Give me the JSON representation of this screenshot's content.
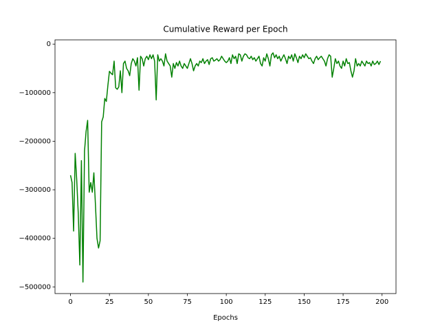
{
  "chart_data": {
    "type": "line",
    "title": "Cumulative Reward per Epoch",
    "x_label": "Epochs",
    "x": [
      0,
      1,
      2,
      3,
      4,
      5,
      6,
      7,
      8,
      9,
      10,
      11,
      12,
      13,
      14,
      15,
      16,
      17,
      18,
      19,
      20,
      21,
      22,
      23,
      24,
      25,
      26,
      27,
      28,
      29,
      30,
      31,
      32,
      33,
      34,
      35,
      36,
      37,
      38,
      39,
      40,
      41,
      42,
      43,
      44,
      45,
      46,
      47,
      48,
      49,
      50,
      51,
      52,
      53,
      54,
      55,
      56,
      57,
      58,
      59,
      60,
      61,
      62,
      63,
      64,
      65,
      66,
      67,
      68,
      69,
      70,
      71,
      72,
      73,
      74,
      75,
      76,
      77,
      78,
      79,
      80,
      81,
      82,
      83,
      84,
      85,
      86,
      87,
      88,
      89,
      90,
      91,
      92,
      93,
      94,
      95,
      96,
      97,
      98,
      99,
      100,
      101,
      102,
      103,
      104,
      105,
      106,
      107,
      108,
      109,
      110,
      111,
      112,
      113,
      114,
      115,
      116,
      117,
      118,
      119,
      120,
      121,
      122,
      123,
      124,
      125,
      126,
      127,
      128,
      129,
      130,
      131,
      132,
      133,
      134,
      135,
      136,
      137,
      138,
      139,
      140,
      141,
      142,
      143,
      144,
      145,
      146,
      147,
      148,
      149,
      150,
      151,
      152,
      153,
      154,
      155,
      156,
      157,
      158,
      159,
      160,
      161,
      162,
      163,
      164,
      165,
      166,
      167,
      168,
      169,
      170,
      171,
      172,
      173,
      174,
      175,
      176,
      177,
      178,
      179,
      180,
      181,
      182,
      183,
      184,
      185,
      186,
      187,
      188,
      189,
      190,
      191,
      192,
      193,
      194,
      195,
      196,
      197,
      198,
      199
    ],
    "series": [
      {
        "color": "#008000",
        "values": [
          -270000,
          -285000,
          -385000,
          -225000,
          -280000,
          -350000,
          -455000,
          -240000,
          -490000,
          -220000,
          -180000,
          -157000,
          -305000,
          -285000,
          -305000,
          -265000,
          -330000,
          -400000,
          -420000,
          -405000,
          -160000,
          -150000,
          -112000,
          -118000,
          -85000,
          -56000,
          -60000,
          -63000,
          -35000,
          -90000,
          -93000,
          -88000,
          -55000,
          -100000,
          -40000,
          -35000,
          -50000,
          -55000,
          -65000,
          -40000,
          -30000,
          -35000,
          -45000,
          -28000,
          -95000,
          -25000,
          -30000,
          -45000,
          -30000,
          -25000,
          -32000,
          -22000,
          -30000,
          -22000,
          -35000,
          -115000,
          -22000,
          -35000,
          -30000,
          -35000,
          -45000,
          -20000,
          -35000,
          -40000,
          -45000,
          -68000,
          -40000,
          -50000,
          -38000,
          -45000,
          -35000,
          -45000,
          -50000,
          -40000,
          -45000,
          -50000,
          -40000,
          -30000,
          -40000,
          -55000,
          -45000,
          -40000,
          -45000,
          -35000,
          -38000,
          -30000,
          -40000,
          -35000,
          -32000,
          -42000,
          -30000,
          -28000,
          -35000,
          -33000,
          -30000,
          -35000,
          -32000,
          -25000,
          -30000,
          -35000,
          -38000,
          -35000,
          -28000,
          -40000,
          -22000,
          -30000,
          -25000,
          -40000,
          -20000,
          -22000,
          -35000,
          -25000,
          -20000,
          -22000,
          -28000,
          -30000,
          -25000,
          -32000,
          -28000,
          -35000,
          -30000,
          -25000,
          -40000,
          -45000,
          -28000,
          -35000,
          -20000,
          -30000,
          -45000,
          -22000,
          -18000,
          -28000,
          -22000,
          -30000,
          -25000,
          -35000,
          -28000,
          -22000,
          -30000,
          -40000,
          -25000,
          -30000,
          -22000,
          -35000,
          -20000,
          -28000,
          -38000,
          -25000,
          -30000,
          -22000,
          -28000,
          -20000,
          -25000,
          -30000,
          -28000,
          -35000,
          -40000,
          -30000,
          -25000,
          -32000,
          -28000,
          -25000,
          -30000,
          -35000,
          -45000,
          -30000,
          -22000,
          -25000,
          -68000,
          -50000,
          -30000,
          -40000,
          -35000,
          -45000,
          -50000,
          -35000,
          -45000,
          -30000,
          -40000,
          -38000,
          -55000,
          -68000,
          -55000,
          -30000,
          -45000,
          -40000,
          -45000,
          -35000,
          -40000,
          -45000,
          -35000,
          -40000,
          -38000,
          -45000,
          -35000,
          -42000,
          -40000,
          -35000,
          -42000,
          -35000
        ]
      }
    ],
    "xlim": [
      -9.95,
      208.95
    ],
    "xticks": [
      0,
      25,
      50,
      75,
      100,
      125,
      150,
      175,
      200
    ],
    "ylim": [
      -513750,
      8750
    ],
    "yticks": [
      {
        "value": -500000,
        "label": "−500000"
      },
      {
        "value": -400000,
        "label": "−400000"
      },
      {
        "value": -300000,
        "label": "−300000"
      },
      {
        "value": -200000,
        "label": "−200000"
      },
      {
        "value": -100000,
        "label": "−100000"
      },
      0
    ]
  }
}
